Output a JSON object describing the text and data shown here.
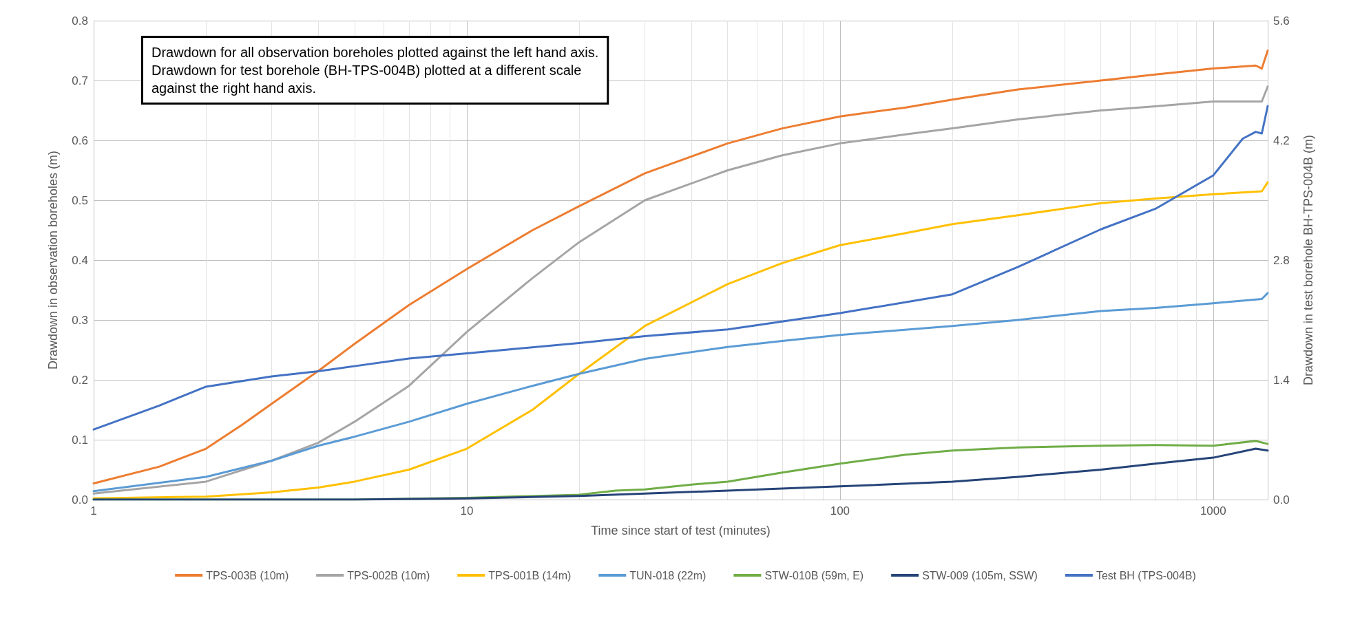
{
  "chart_data": {
    "type": "line",
    "xlabel": "Time since start of test (minutes)",
    "ylabel": "Drawdown in observation boreholes (m)",
    "y2label": "Drawdown in test borehole BH-TPS-004B (m)",
    "annotations": [
      "Drawdown for all observation boreholes plotted against the left hand axis.\nDrawdown for test borehole (BH-TPS-004B) plotted at a different scale\nagainst the right hand axis."
    ],
    "log": "x",
    "grid": true,
    "legend": "bottom",
    "marker": "none",
    "line_style": "solid",
    "xlim": [
      1,
      1400
    ],
    "xticks": [
      1,
      10,
      100,
      1000
    ],
    "ylim": [
      0,
      0.8
    ],
    "yticks": [
      {
        "value": 0,
        "label": "0.0"
      },
      0.1,
      0.2,
      0.3,
      0.4,
      0.5,
      0.6,
      0.7,
      0.8
    ],
    "y2lim": [
      0,
      5.6
    ],
    "y2ticks": [
      {
        "value": 0,
        "label": "0.0"
      },
      1.4,
      2.8,
      4.2,
      5.6
    ],
    "series": [
      {
        "name": "TPS-003B (10m)",
        "color": "#ed7d31",
        "x": [
          1,
          1.5,
          2,
          2.5,
          3,
          4,
          5,
          7,
          10,
          15,
          20,
          30,
          50,
          70,
          100,
          150,
          200,
          300,
          500,
          700,
          1000,
          1300,
          1350,
          1400
        ],
        "values": [
          0.027,
          0.055,
          0.085,
          0.125,
          0.16,
          0.215,
          0.26,
          0.325,
          0.385,
          0.45,
          0.49,
          0.545,
          0.595,
          0.62,
          0.64,
          0.655,
          0.668,
          0.685,
          0.7,
          0.71,
          0.72,
          0.725,
          0.72,
          0.75
        ]
      },
      {
        "name": "TPS-002B (10m)",
        "color": "#a5a5a5",
        "x": [
          1,
          2,
          3,
          4,
          5,
          7,
          10,
          15,
          20,
          30,
          50,
          70,
          100,
          150,
          200,
          300,
          500,
          700,
          1000,
          1350,
          1400
        ],
        "values": [
          0.01,
          0.03,
          0.065,
          0.095,
          0.13,
          0.19,
          0.28,
          0.37,
          0.43,
          0.5,
          0.55,
          0.575,
          0.595,
          0.61,
          0.62,
          0.635,
          0.65,
          0.657,
          0.665,
          0.665,
          0.69
        ]
      },
      {
        "name": "TPS-001B (14m)",
        "color": "#ffc000",
        "x": [
          1,
          2,
          3,
          4,
          5,
          7,
          10,
          15,
          20,
          30,
          50,
          70,
          100,
          150,
          200,
          300,
          500,
          700,
          1000,
          1350,
          1400
        ],
        "values": [
          0.002,
          0.005,
          0.012,
          0.02,
          0.03,
          0.05,
          0.085,
          0.15,
          0.21,
          0.29,
          0.36,
          0.395,
          0.425,
          0.445,
          0.46,
          0.475,
          0.495,
          0.503,
          0.51,
          0.515,
          0.53
        ]
      },
      {
        "name": "TUN-018 (22m)",
        "color": "#5b9bd5",
        "x": [
          1,
          2,
          3,
          4,
          5,
          7,
          10,
          15,
          20,
          30,
          50,
          70,
          100,
          200,
          300,
          500,
          700,
          1000,
          1350,
          1400
        ],
        "values": [
          0.014,
          0.038,
          0.065,
          0.09,
          0.105,
          0.13,
          0.16,
          0.19,
          0.21,
          0.235,
          0.255,
          0.265,
          0.275,
          0.29,
          0.3,
          0.315,
          0.32,
          0.328,
          0.335,
          0.345
        ]
      },
      {
        "name": "STW-010B (59m, E)",
        "color": "#70ad47",
        "x": [
          1,
          5,
          10,
          20,
          25,
          30,
          40,
          50,
          70,
          100,
          150,
          200,
          300,
          500,
          700,
          1000,
          1300,
          1400
        ],
        "values": [
          0,
          0,
          0.003,
          0.008,
          0.015,
          0.017,
          0.025,
          0.03,
          0.045,
          0.06,
          0.075,
          0.082,
          0.087,
          0.09,
          0.091,
          0.09,
          0.098,
          0.093
        ]
      },
      {
        "name": "STW-009 (105m, SSW)",
        "color": "#264478",
        "x": [
          1,
          5,
          10,
          20,
          30,
          50,
          100,
          200,
          300,
          500,
          700,
          1000,
          1300,
          1400
        ],
        "values": [
          0,
          0,
          0.002,
          0.006,
          0.01,
          0.015,
          0.022,
          0.03,
          0.038,
          0.05,
          0.06,
          0.07,
          0.085,
          0.082
        ]
      },
      {
        "name": "Test BH (TPS-004B)",
        "color": "#4472c4",
        "axis": "y2",
        "x": [
          1,
          1.5,
          2,
          3,
          4,
          5,
          7,
          10,
          20,
          30,
          50,
          100,
          200,
          300,
          500,
          700,
          1000,
          1200,
          1300,
          1350,
          1400
        ],
        "values": [
          0.82,
          1.1,
          1.32,
          1.44,
          1.5,
          1.56,
          1.65,
          1.71,
          1.83,
          1.91,
          1.99,
          2.18,
          2.4,
          2.72,
          3.16,
          3.4,
          3.79,
          4.22,
          4.3,
          4.28,
          4.6
        ]
      }
    ]
  }
}
